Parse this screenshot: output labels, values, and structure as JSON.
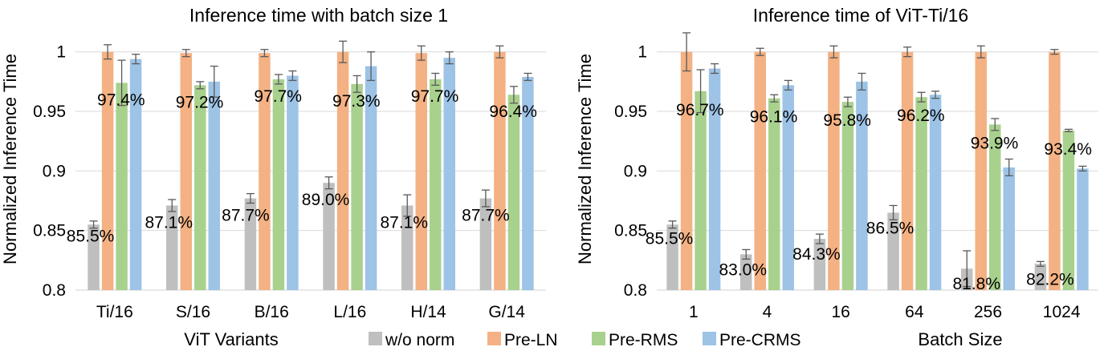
{
  "legend": [
    {
      "name": "w/o norm",
      "color": "#bfbfbf"
    },
    {
      "name": "Pre-LN",
      "color": "#f4b183"
    },
    {
      "name": "Pre-RMS",
      "color": "#a9d18e"
    },
    {
      "name": "Pre-CRMS",
      "color": "#9dc3e6"
    }
  ],
  "chart_data": [
    {
      "type": "bar",
      "title": "Inference time with batch size 1",
      "xlabel": "ViT Variants",
      "ylabel": "Normalized Inference Time",
      "ylim": [
        0.8,
        1.02
      ],
      "yticks": [
        0.8,
        0.85,
        0.9,
        0.95,
        1
      ],
      "ytick_labels": [
        "0.8",
        "0.85",
        "0.9",
        "0.95",
        "1"
      ],
      "grid": true,
      "categories": [
        "Ti/16",
        "S/16",
        "B/16",
        "L/16",
        "H/14",
        "G/14"
      ],
      "series": [
        {
          "name": "w/o norm",
          "color": "#bfbfbf",
          "values": [
            0.855,
            0.871,
            0.877,
            0.89,
            0.871,
            0.877
          ],
          "errors": [
            0.003,
            0.005,
            0.004,
            0.005,
            0.009,
            0.007
          ]
        },
        {
          "name": "Pre-LN",
          "color": "#f4b183",
          "values": [
            1.0,
            0.999,
            0.999,
            1.0,
            0.999,
            1.0
          ],
          "errors": [
            0.006,
            0.003,
            0.003,
            0.009,
            0.006,
            0.005
          ]
        },
        {
          "name": "Pre-RMS",
          "color": "#a9d18e",
          "values": [
            0.974,
            0.972,
            0.977,
            0.973,
            0.977,
            0.964
          ],
          "errors": [
            0.019,
            0.003,
            0.004,
            0.007,
            0.005,
            0.007
          ]
        },
        {
          "name": "Pre-CRMS",
          "color": "#9dc3e6",
          "values": [
            0.994,
            0.975,
            0.98,
            0.988,
            0.995,
            0.979
          ],
          "errors": [
            0.004,
            0.013,
            0.004,
            0.012,
            0.005,
            0.003
          ]
        }
      ],
      "annotations": [
        {
          "category": "Ti/16",
          "series": "w/o norm",
          "text": "85.5%"
        },
        {
          "category": "S/16",
          "series": "w/o norm",
          "text": "87.1%"
        },
        {
          "category": "B/16",
          "series": "w/o norm",
          "text": "87.7%"
        },
        {
          "category": "L/16",
          "series": "w/o norm",
          "text": "89.0%"
        },
        {
          "category": "H/14",
          "series": "w/o norm",
          "text": "87.1%"
        },
        {
          "category": "G/14",
          "series": "w/o norm",
          "text": "87.7%"
        },
        {
          "category": "Ti/16",
          "series": "Pre-RMS",
          "text": "97.4%"
        },
        {
          "category": "S/16",
          "series": "Pre-RMS",
          "text": "97.2%"
        },
        {
          "category": "B/16",
          "series": "Pre-RMS",
          "text": "97.7%"
        },
        {
          "category": "L/16",
          "series": "Pre-RMS",
          "text": "97.3%"
        },
        {
          "category": "H/14",
          "series": "Pre-RMS",
          "text": "97.7%"
        },
        {
          "category": "G/14",
          "series": "Pre-RMS",
          "text": "96.4%"
        }
      ]
    },
    {
      "type": "bar",
      "title": "Inference time of ViT-Ti/16",
      "xlabel": "Batch Size",
      "ylabel": "Normalized Inference Time",
      "ylim": [
        0.8,
        1.02
      ],
      "yticks": [
        0.8,
        0.85,
        0.9,
        0.95,
        1
      ],
      "ytick_labels": [
        "0.8",
        "0.85",
        "0.9",
        "0.95",
        "1"
      ],
      "grid": true,
      "categories": [
        "1",
        "4",
        "16",
        "64",
        "256",
        "1024"
      ],
      "series": [
        {
          "name": "w/o norm",
          "color": "#bfbfbf",
          "values": [
            0.855,
            0.83,
            0.843,
            0.865,
            0.818,
            0.822
          ],
          "errors": [
            0.003,
            0.004,
            0.004,
            0.006,
            0.015,
            0.002
          ]
        },
        {
          "name": "Pre-LN",
          "color": "#f4b183",
          "values": [
            1.0,
            1.0,
            1.0,
            1.0,
            1.0,
            1.0
          ],
          "errors": [
            0.016,
            0.003,
            0.005,
            0.004,
            0.005,
            0.002
          ]
        },
        {
          "name": "Pre-RMS",
          "color": "#a9d18e",
          "values": [
            0.967,
            0.961,
            0.958,
            0.962,
            0.939,
            0.934
          ],
          "errors": [
            0.018,
            0.003,
            0.004,
            0.004,
            0.005,
            0.001
          ]
        },
        {
          "name": "Pre-CRMS",
          "color": "#9dc3e6",
          "values": [
            0.986,
            0.972,
            0.975,
            0.964,
            0.903,
            0.902
          ],
          "errors": [
            0.004,
            0.004,
            0.007,
            0.003,
            0.007,
            0.002
          ]
        }
      ],
      "annotations": [
        {
          "category": "1",
          "series": "w/o norm",
          "text": "85.5%"
        },
        {
          "category": "4",
          "series": "w/o norm",
          "text": "83.0%"
        },
        {
          "category": "16",
          "series": "w/o norm",
          "text": "84.3%"
        },
        {
          "category": "64",
          "series": "w/o norm",
          "text": "86.5%"
        },
        {
          "category": "256",
          "series": "w/o norm",
          "text": "81.8%"
        },
        {
          "category": "1024",
          "series": "w/o norm",
          "text": "82.2%"
        },
        {
          "category": "1",
          "series": "Pre-RMS",
          "text": "96.7%"
        },
        {
          "category": "4",
          "series": "Pre-RMS",
          "text": "96.1%"
        },
        {
          "category": "16",
          "series": "Pre-RMS",
          "text": "95.8%"
        },
        {
          "category": "64",
          "series": "Pre-RMS",
          "text": "96.2%"
        },
        {
          "category": "256",
          "series": "Pre-RMS",
          "text": "93.9%"
        },
        {
          "category": "1024",
          "series": "Pre-RMS",
          "text": "93.4%"
        }
      ]
    }
  ]
}
